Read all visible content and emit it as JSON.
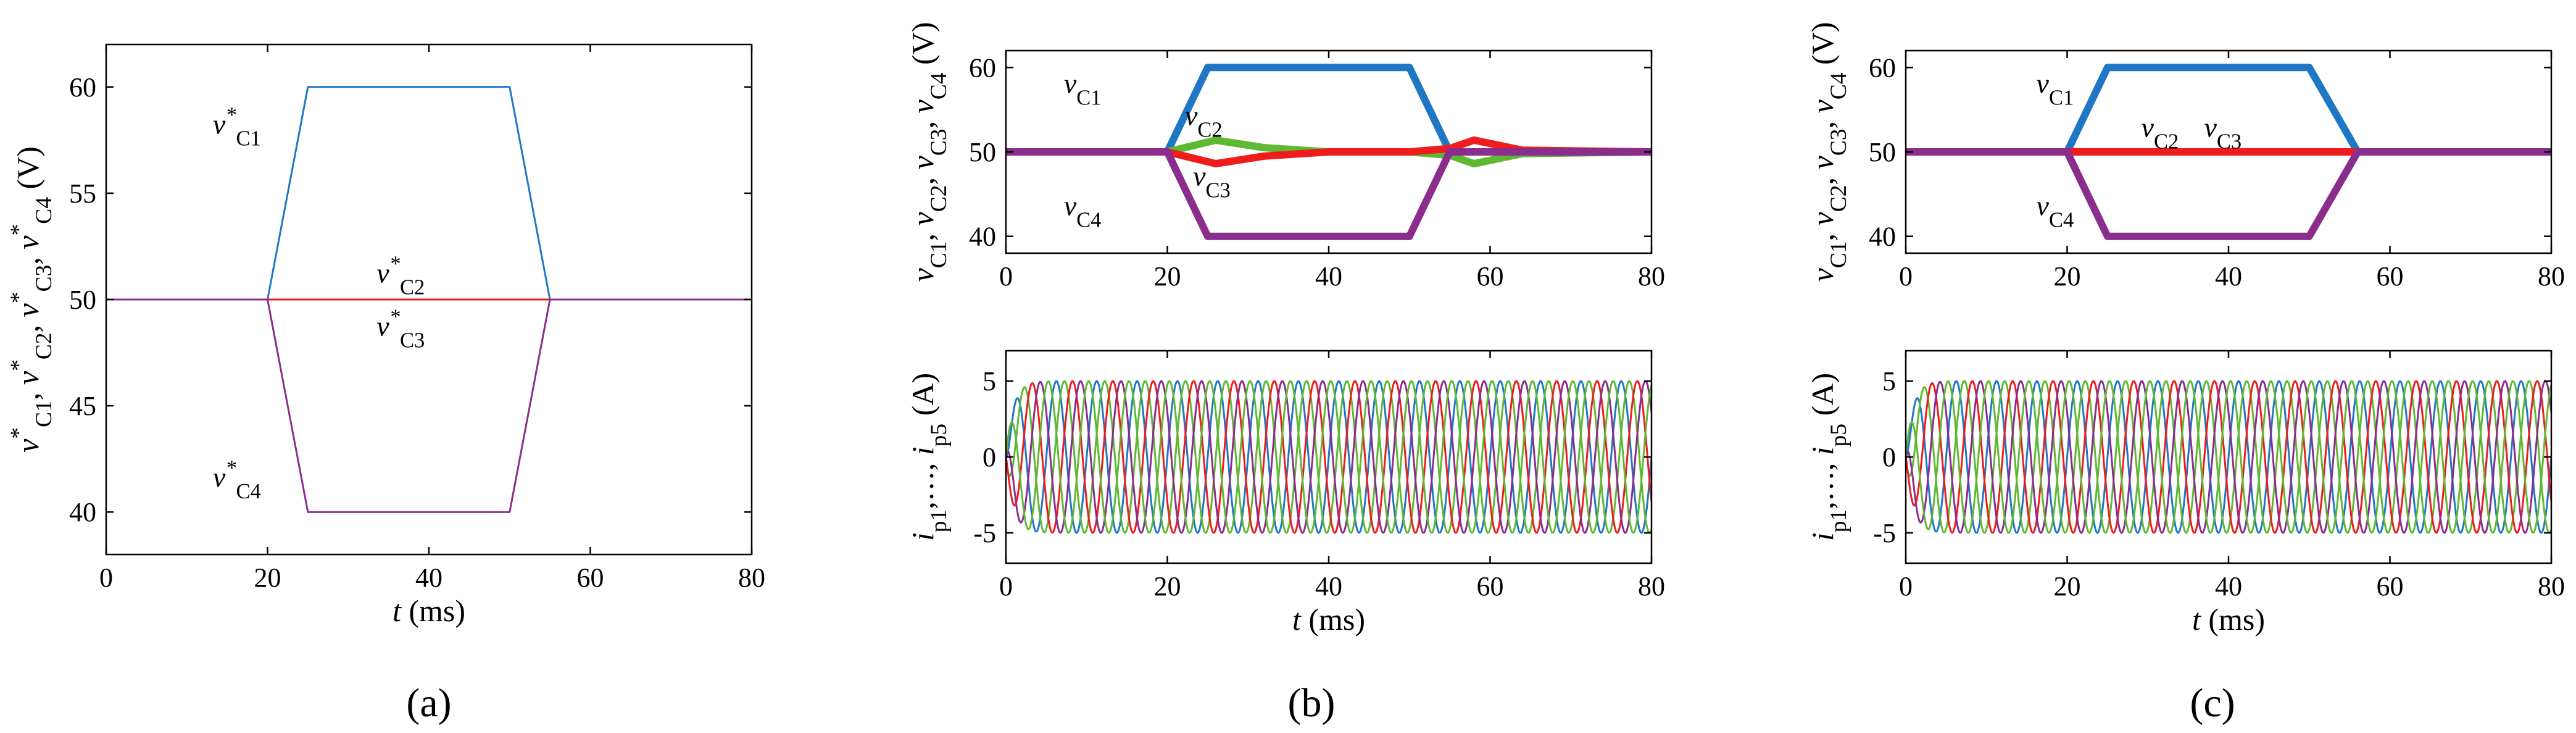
{
  "figure_labels": {
    "a": "(a)",
    "b": "(b)",
    "c": "(c)"
  },
  "colors": {
    "c1": "#1f77c4",
    "c2": "#5fb832",
    "c3": "#ee1c1c",
    "c4": "#8a2d8c",
    "p5": "#1f77c4"
  },
  "chart_data": [
    {
      "id": "a",
      "type": "line",
      "xlabel": "t (ms)",
      "ylabel": "v*C1, v*C2, v*C3, v*C4 (V)",
      "xlim": [
        0,
        80
      ],
      "ylim": [
        38,
        62
      ],
      "xticks": [
        0,
        20,
        40,
        60,
        80
      ],
      "yticks": [
        40,
        45,
        50,
        55,
        60
      ],
      "series": [
        {
          "name": "v*C1",
          "color": "#1f77c4",
          "x": [
            0,
            20,
            25,
            50,
            55,
            80
          ],
          "y": [
            50,
            50,
            60,
            60,
            50,
            50
          ]
        },
        {
          "name": "v*C2",
          "color": "#5fb832",
          "x": [
            0,
            80
          ],
          "y": [
            50,
            50
          ]
        },
        {
          "name": "v*C3",
          "color": "#ee1c1c",
          "x": [
            0,
            80
          ],
          "y": [
            50,
            50
          ]
        },
        {
          "name": "v*C4",
          "color": "#8a2d8c",
          "x": [
            0,
            20,
            25,
            50,
            55,
            80
          ],
          "y": [
            50,
            50,
            40,
            40,
            50,
            50
          ]
        }
      ],
      "annotations": [
        {
          "name": "C1",
          "x": 16.2,
          "y": 57.8
        },
        {
          "name": "C2",
          "x": 36.5,
          "y": 50.8
        },
        {
          "name": "C3",
          "x": 36.5,
          "y": 48.3
        },
        {
          "name": "C4",
          "x": 16.2,
          "y": 41.2
        }
      ]
    },
    {
      "id": "b-top",
      "type": "line",
      "xlabel": "",
      "ylabel": "vC1, vC2, vC3, vC4 (V)",
      "xlim": [
        0,
        80
      ],
      "ylim": [
        38,
        62
      ],
      "xticks": [
        0,
        20,
        40,
        60,
        80
      ],
      "yticks": [
        40,
        50,
        60
      ],
      "series": [
        {
          "name": "vC1",
          "color": "#1f77c4",
          "x": [
            0,
            20,
            25,
            50,
            55,
            80
          ],
          "y": [
            50,
            50,
            60,
            60,
            50,
            50
          ]
        },
        {
          "name": "vC2",
          "color": "#5fb832",
          "x": [
            0,
            20,
            26,
            32,
            40,
            50,
            55,
            58,
            64,
            80
          ],
          "y": [
            50,
            50,
            51.4,
            50.5,
            50,
            50,
            49.6,
            48.6,
            49.8,
            50
          ]
        },
        {
          "name": "vC3",
          "color": "#ee1c1c",
          "x": [
            0,
            20,
            26,
            32,
            40,
            50,
            55,
            58,
            64,
            80
          ],
          "y": [
            50,
            50,
            48.6,
            49.5,
            50,
            50,
            50.4,
            51.4,
            50.2,
            50
          ]
        },
        {
          "name": "vC4",
          "color": "#8a2d8c",
          "x": [
            0,
            20,
            25,
            50,
            55,
            80
          ],
          "y": [
            50,
            50,
            40,
            40,
            50,
            50
          ]
        }
      ],
      "annotations": [
        {
          "name": "C1",
          "x": 9.5,
          "y": 57.0
        },
        {
          "name": "C2",
          "x": 24.5,
          "y": 53.2
        },
        {
          "name": "C3",
          "x": 25.5,
          "y": 46.0
        },
        {
          "name": "C4",
          "x": 9.5,
          "y": 42.5
        }
      ]
    },
    {
      "id": "b-bottom",
      "type": "line",
      "xlabel": "t (ms)",
      "ylabel": "ip1,…, ip5 (A)",
      "xlim": [
        0,
        80
      ],
      "ylim": [
        -7,
        7
      ],
      "xticks": [
        0,
        20,
        40,
        60,
        80
      ],
      "yticks": [
        -5,
        0,
        5
      ],
      "amplitude": 5,
      "frequency_hz": 200,
      "series": [
        {
          "name": "ip1",
          "color": "#1f77c4",
          "phase_deg": 0
        },
        {
          "name": "ip2",
          "color": "#5fb832",
          "phase_deg": -72
        },
        {
          "name": "ip3",
          "color": "#ee1c1c",
          "phase_deg": -144
        },
        {
          "name": "ip4",
          "color": "#8a2d8c",
          "phase_deg": -216
        },
        {
          "name": "ip5",
          "color": "#5fb832",
          "phase_deg": -288
        }
      ]
    },
    {
      "id": "c-top",
      "type": "line",
      "xlabel": "",
      "ylabel": "vC1, vC2, vC3, vC4 (V)",
      "xlim": [
        0,
        80
      ],
      "ylim": [
        38,
        62
      ],
      "xticks": [
        0,
        20,
        40,
        60,
        80
      ],
      "yticks": [
        40,
        50,
        60
      ],
      "series": [
        {
          "name": "vC1",
          "color": "#1f77c4",
          "x": [
            0,
            20,
            25,
            50,
            56,
            80
          ],
          "y": [
            50,
            50,
            60,
            60,
            50,
            50
          ]
        },
        {
          "name": "vC2",
          "color": "#5fb832",
          "x": [
            0,
            80
          ],
          "y": [
            50,
            50
          ]
        },
        {
          "name": "vC3",
          "color": "#ee1c1c",
          "x": [
            0,
            80
          ],
          "y": [
            50,
            50
          ]
        },
        {
          "name": "vC4",
          "color": "#8a2d8c",
          "x": [
            0,
            20,
            25,
            50,
            56,
            80
          ],
          "y": [
            50,
            50,
            40,
            40,
            50,
            50
          ]
        }
      ],
      "annotations": [
        {
          "name": "C1",
          "x": 18.5,
          "y": 57.0
        },
        {
          "name": "C2",
          "x": 31.5,
          "y": 51.8
        },
        {
          "name": "C3",
          "x": 39.3,
          "y": 51.8
        },
        {
          "name": "C4",
          "x": 18.5,
          "y": 42.5
        }
      ]
    },
    {
      "id": "c-bottom",
      "type": "line",
      "xlabel": "t (ms)",
      "ylabel": "ip1,…, ip5 (A)",
      "xlim": [
        0,
        80
      ],
      "ylim": [
        -7,
        7
      ],
      "xticks": [
        0,
        20,
        40,
        60,
        80
      ],
      "yticks": [
        -5,
        0,
        5
      ],
      "amplitude": 5,
      "frequency_hz": 200,
      "series": [
        {
          "name": "ip1",
          "color": "#1f77c4",
          "phase_deg": 0
        },
        {
          "name": "ip2",
          "color": "#5fb832",
          "phase_deg": -72
        },
        {
          "name": "ip3",
          "color": "#ee1c1c",
          "phase_deg": -144
        },
        {
          "name": "ip4",
          "color": "#8a2d8c",
          "phase_deg": -216
        },
        {
          "name": "ip5",
          "color": "#5fb832",
          "phase_deg": -288
        }
      ]
    }
  ]
}
